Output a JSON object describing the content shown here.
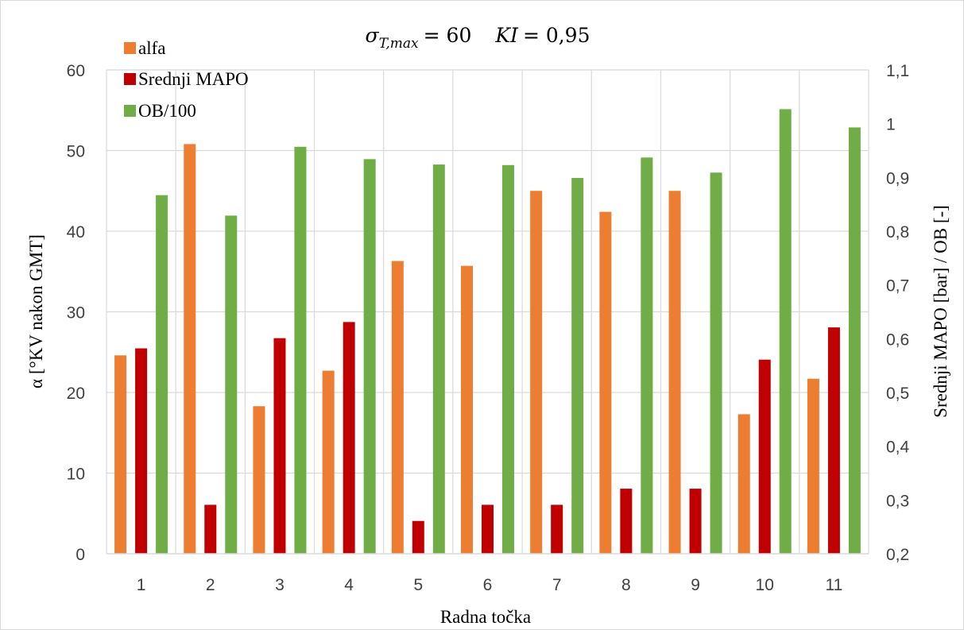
{
  "chart_data": {
    "type": "bar",
    "title": {
      "sigma_label": "σ",
      "sigma_sub": "T,max",
      "sigma_value": "= 60",
      "ki_label": "KI",
      "ki_value": "= 0,95"
    },
    "xlabel": "Radna točka",
    "ylabel_left": "α [°KV nakon GMT]",
    "ylabel_right": "Srednji MAPO [bar] / OB [-]",
    "categories": [
      "1",
      "2",
      "3",
      "4",
      "5",
      "6",
      "7",
      "8",
      "9",
      "10",
      "11"
    ],
    "y_left": {
      "min": 0,
      "max": 60,
      "step": 10,
      "ticks": [
        "0",
        "10",
        "20",
        "30",
        "40",
        "50",
        "60"
      ]
    },
    "y_right": {
      "min": 0.2,
      "max": 1.1,
      "step": 0.1,
      "ticks": [
        "0,2",
        "0,3",
        "0,4",
        "0,5",
        "0,6",
        "0,7",
        "0,8",
        "0,9",
        "1",
        "1,1"
      ]
    },
    "grid": true,
    "legend_position": "top-left",
    "series": [
      {
        "name": "alfa",
        "axis": "left",
        "color": "#ed7d31",
        "values": [
          24.6,
          50.8,
          18.3,
          22.7,
          36.3,
          35.7,
          45.0,
          42.4,
          45.0,
          17.3,
          21.7
        ]
      },
      {
        "name": "Srednji MAPO",
        "axis": "right",
        "color": "#c00000",
        "values": [
          0.582,
          0.291,
          0.601,
          0.631,
          0.261,
          0.291,
          0.291,
          0.321,
          0.321,
          0.561,
          0.621
        ]
      },
      {
        "name": "OB/100",
        "axis": "right",
        "color": "#70ad47",
        "values": [
          0.867,
          0.829,
          0.957,
          0.934,
          0.924,
          0.923,
          0.899,
          0.937,
          0.909,
          1.027,
          0.993
        ]
      }
    ]
  }
}
